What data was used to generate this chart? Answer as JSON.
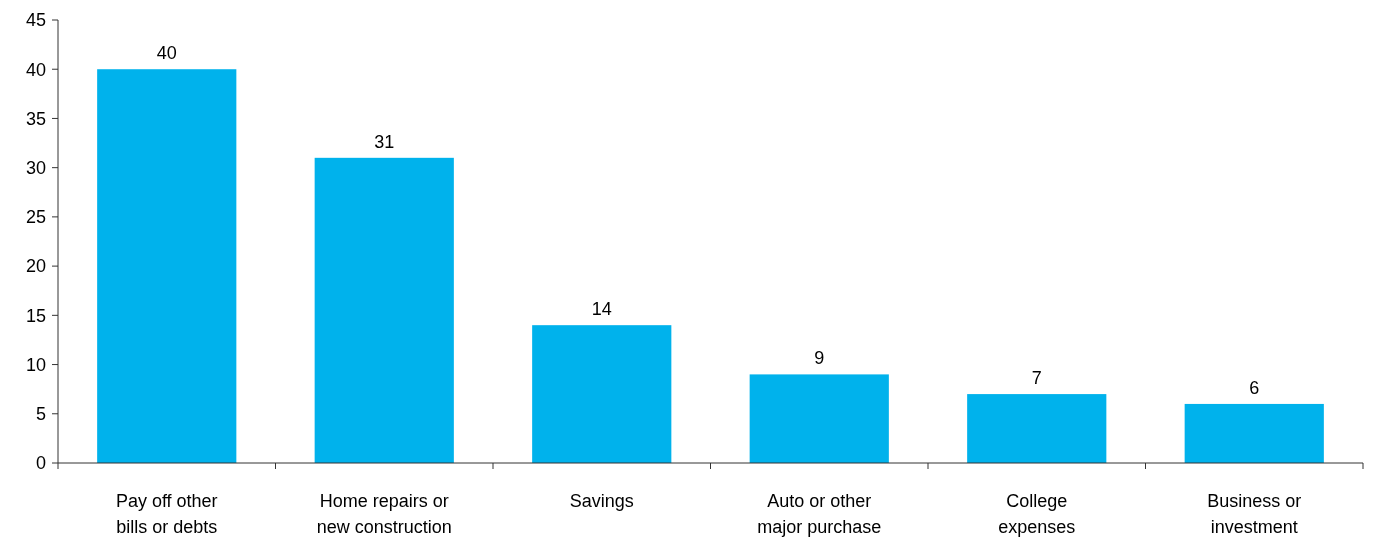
{
  "chart_data": {
    "type": "bar",
    "categories": [
      "Pay off other bills or debts",
      "Home repairs or new construction",
      "Savings",
      "Auto or other major purchase",
      "College expenses",
      "Business or investment"
    ],
    "values": [
      40,
      31,
      14,
      9,
      7,
      6
    ],
    "color": "#00b2ec",
    "ylim": [
      0,
      45
    ],
    "yticks": [
      0,
      5,
      10,
      15,
      20,
      25,
      30,
      35,
      40,
      45
    ],
    "grid": false,
    "data_labels": true
  }
}
